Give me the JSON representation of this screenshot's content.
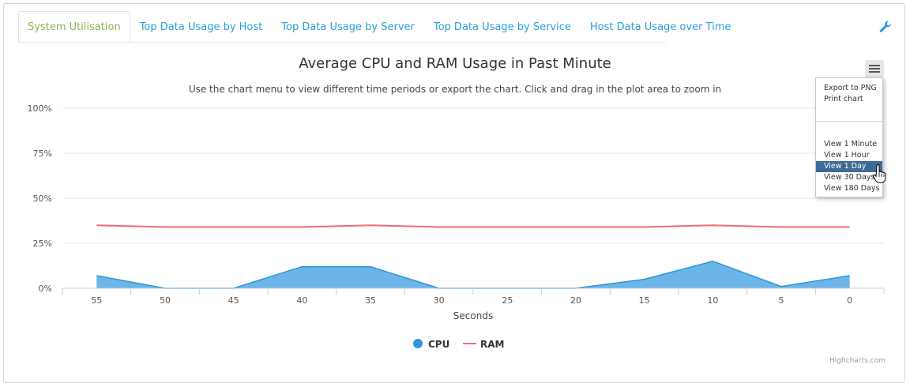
{
  "tabs": [
    {
      "label": "System Utilisation",
      "active": true
    },
    {
      "label": "Top Data Usage by Host"
    },
    {
      "label": "Top Data Usage by Server"
    },
    {
      "label": "Top Data Usage by Service"
    },
    {
      "label": "Host Data Usage over Time"
    }
  ],
  "toolbar": {
    "settings_icon": "wrench-icon"
  },
  "chart_menu": {
    "icon": "hamburger-menu-icon",
    "items": [
      "Export to PNG",
      "Print chart",
      "View 1 Minute",
      "View 1 Hour",
      "View 1 Day",
      "View 30 Days",
      "View 180 Days"
    ],
    "highlighted": "View 1 Day"
  },
  "credits": "Highcharts.com",
  "colors": {
    "cpu": "#2f96dd",
    "cpu_fill": "#6cb5e8",
    "ram": "#f0697a",
    "tab_active": "#8cb758",
    "tab_link": "#2a9fd6",
    "menu_hover": "#3d6a96"
  },
  "chart_data": {
    "type": "area",
    "title": "Average CPU and RAM Usage in Past Minute",
    "subtitle": "Use the chart menu to view different time periods or export the chart. Click and drag in the plot area to zoom in",
    "xlabel": "Seconds",
    "ylabel": "",
    "x": [
      55,
      50,
      45,
      40,
      35,
      30,
      25,
      20,
      15,
      10,
      5,
      0
    ],
    "y_ticks": [
      "0%",
      "25%",
      "50%",
      "75%",
      "100%"
    ],
    "ylim": [
      0,
      100
    ],
    "grid": true,
    "legend_position": "bottom-center",
    "series": [
      {
        "name": "CPU",
        "type": "area",
        "values": [
          7,
          0,
          0,
          12,
          12,
          0,
          0,
          0,
          5,
          15,
          1,
          7
        ]
      },
      {
        "name": "RAM",
        "type": "line",
        "values": [
          35,
          34,
          34,
          34,
          35,
          34,
          34,
          34,
          34,
          35,
          34,
          34
        ]
      }
    ]
  }
}
